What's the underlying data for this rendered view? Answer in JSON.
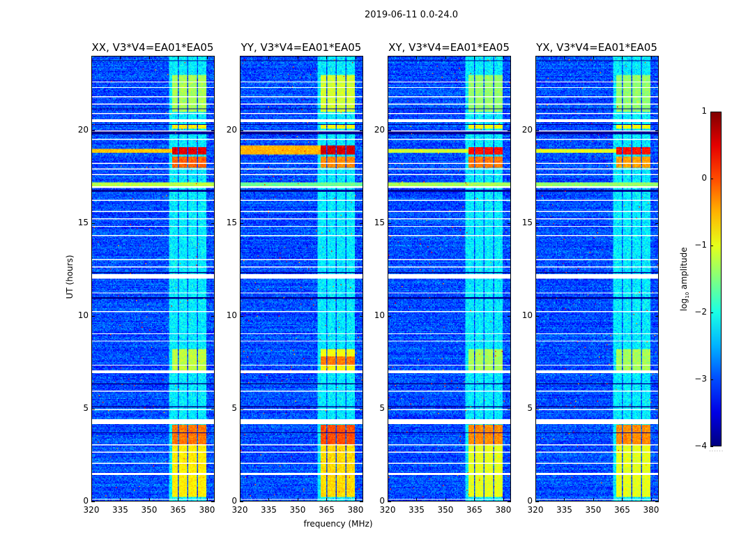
{
  "chart_data": {
    "type": "heatmap",
    "title": "2019-06-11 0.0-24.0",
    "xlabel": "frequency (MHz)",
    "ylabel": "UT (hours)",
    "xlim": [
      320,
      384
    ],
    "ylim": [
      0,
      24
    ],
    "xticks": [
      320,
      335,
      350,
      365,
      380
    ],
    "yticks": [
      0,
      5,
      10,
      15,
      20
    ],
    "colorbar": {
      "label": "log10 amplitude",
      "label_base": "log",
      "label_sub": "10",
      "label_rest": " amplitude",
      "range": [
        -4,
        1
      ],
      "ticks": [
        "1",
        "0",
        "−1",
        "−2",
        "−3",
        "−4"
      ],
      "tick_values": [
        1,
        0,
        -1,
        -2,
        -3,
        -4
      ],
      "colormap": "jet"
    },
    "background_level": -3.0,
    "rfi_channels": [
      [
        360.5,
        364.8
      ],
      [
        365.6,
        369.8
      ],
      [
        370.6,
        374.8
      ],
      [
        375.6,
        380.0
      ]
    ],
    "rfi_channel_level": -2.2,
    "flagged_hours": [
      [
        0.05,
        0.12
      ],
      [
        1.42,
        1.5
      ],
      [
        1.98,
        2.04
      ],
      [
        2.58,
        2.63
      ],
      [
        2.98,
        3.03
      ],
      [
        4.15,
        4.4
      ],
      [
        4.88,
        4.93
      ],
      [
        5.88,
        5.93
      ],
      [
        6.88,
        7.06
      ],
      [
        7.28,
        7.33
      ],
      [
        8.58,
        8.63
      ],
      [
        8.98,
        9.03
      ],
      [
        9.98,
        10.02
      ],
      [
        10.2,
        10.25
      ],
      [
        11.18,
        11.23
      ],
      [
        12.02,
        12.25
      ],
      [
        12.58,
        12.63
      ],
      [
        12.98,
        13.03
      ],
      [
        14.28,
        14.33
      ],
      [
        14.78,
        14.83
      ],
      [
        15.18,
        15.23
      ],
      [
        15.58,
        15.63
      ],
      [
        16.18,
        16.23
      ],
      [
        16.88,
        17.0
      ],
      [
        17.58,
        17.63
      ],
      [
        17.88,
        17.93
      ],
      [
        18.18,
        18.23
      ],
      [
        19.48,
        19.53
      ],
      [
        19.95,
        20.0
      ],
      [
        20.45,
        20.6
      ],
      [
        20.88,
        20.93
      ],
      [
        21.38,
        21.43
      ],
      [
        21.78,
        21.83
      ],
      [
        22.28,
        22.33
      ],
      [
        22.58,
        22.63
      ]
    ],
    "dark_hours": [
      [
        3.65,
        3.72
      ],
      [
        5.05,
        5.1
      ],
      [
        6.3,
        6.35
      ],
      [
        10.92,
        10.98
      ],
      [
        12.3,
        12.36
      ],
      [
        16.7,
        16.78
      ],
      [
        19.8,
        19.93
      ],
      [
        20.3,
        20.36
      ],
      [
        21.15,
        21.2
      ],
      [
        23.75,
        23.8
      ]
    ],
    "panels": [
      {
        "title": "XX, V3*V4=EA01*EA05",
        "events": [
          {
            "hours": [
              0.2,
              4.1
            ],
            "freq": [
              362,
              380
            ],
            "level": -0.8
          },
          {
            "hours": [
              3.0,
              4.1
            ],
            "freq": [
              362,
              380
            ],
            "level": -0.2
          },
          {
            "hours": [
              7.0,
              8.2
            ],
            "freq": [
              362,
              380
            ],
            "level": -1.2
          },
          {
            "hours": [
              18.0,
              18.6
            ],
            "freq": [
              362,
              380
            ],
            "level": -0.1
          },
          {
            "hours": [
              18.7,
              19.1
            ],
            "freq": [
              362,
              380
            ],
            "level": 0.5
          },
          {
            "hours": [
              18.8,
              19.0
            ],
            "freq": [
              320,
              362
            ],
            "level": -0.6
          },
          {
            "hours": [
              17.0,
              17.2
            ],
            "freq": [
              320,
              384
            ],
            "level": -1.2
          },
          {
            "hours": [
              20.1,
              20.3
            ],
            "freq": [
              362,
              380
            ],
            "level": -0.8
          },
          {
            "hours": [
              21.0,
              23.0
            ],
            "freq": [
              362,
              380
            ],
            "level": -1.3
          }
        ]
      },
      {
        "title": "YY, V3*V4=EA01*EA05",
        "events": [
          {
            "hours": [
              0.2,
              4.1
            ],
            "freq": [
              362,
              380
            ],
            "level": -0.7
          },
          {
            "hours": [
              3.0,
              4.1
            ],
            "freq": [
              362,
              380
            ],
            "level": 0.0
          },
          {
            "hours": [
              7.0,
              8.2
            ],
            "freq": [
              362,
              380
            ],
            "level": -0.9
          },
          {
            "hours": [
              7.3,
              7.8
            ],
            "freq": [
              362,
              380
            ],
            "level": -0.2
          },
          {
            "hours": [
              18.0,
              18.6
            ],
            "freq": [
              362,
              380
            ],
            "level": -0.3
          },
          {
            "hours": [
              18.7,
              19.2
            ],
            "freq": [
              362,
              380
            ],
            "level": 0.6
          },
          {
            "hours": [
              18.7,
              19.2
            ],
            "freq": [
              320,
              362
            ],
            "level": -0.5
          },
          {
            "hours": [
              17.0,
              17.2
            ],
            "freq": [
              320,
              384
            ],
            "level": -1.6
          },
          {
            "hours": [
              20.1,
              20.3
            ],
            "freq": [
              362,
              380
            ],
            "level": -0.9
          },
          {
            "hours": [
              21.0,
              23.0
            ],
            "freq": [
              362,
              380
            ],
            "level": -1.1
          }
        ]
      },
      {
        "title": "XY, V3*V4=EA01*EA05",
        "events": [
          {
            "hours": [
              0.2,
              4.1
            ],
            "freq": [
              362,
              380
            ],
            "level": -1.0
          },
          {
            "hours": [
              3.0,
              4.1
            ],
            "freq": [
              362,
              380
            ],
            "level": -0.3
          },
          {
            "hours": [
              7.0,
              8.2
            ],
            "freq": [
              362,
              380
            ],
            "level": -1.3
          },
          {
            "hours": [
              18.0,
              18.6
            ],
            "freq": [
              362,
              380
            ],
            "level": -0.2
          },
          {
            "hours": [
              18.7,
              19.1
            ],
            "freq": [
              362,
              380
            ],
            "level": 0.3
          },
          {
            "hours": [
              18.8,
              19.0
            ],
            "freq": [
              320,
              362
            ],
            "level": -1.1
          },
          {
            "hours": [
              17.0,
              17.2
            ],
            "freq": [
              320,
              384
            ],
            "level": -1.3
          },
          {
            "hours": [
              20.1,
              20.3
            ],
            "freq": [
              362,
              380
            ],
            "level": -0.9
          },
          {
            "hours": [
              21.0,
              23.0
            ],
            "freq": [
              362,
              380
            ],
            "level": -1.4
          }
        ]
      },
      {
        "title": "YX, V3*V4=EA01*EA05",
        "events": [
          {
            "hours": [
              0.2,
              4.1
            ],
            "freq": [
              362,
              380
            ],
            "level": -1.0
          },
          {
            "hours": [
              3.0,
              4.1
            ],
            "freq": [
              362,
              380
            ],
            "level": -0.3
          },
          {
            "hours": [
              7.0,
              8.2
            ],
            "freq": [
              362,
              380
            ],
            "level": -1.3
          },
          {
            "hours": [
              18.0,
              18.6
            ],
            "freq": [
              362,
              380
            ],
            "level": -0.4
          },
          {
            "hours": [
              18.7,
              19.1
            ],
            "freq": [
              362,
              380
            ],
            "level": 0.3
          },
          {
            "hours": [
              18.8,
              19.0
            ],
            "freq": [
              320,
              362
            ],
            "level": -1.0
          },
          {
            "hours": [
              17.0,
              17.2
            ],
            "freq": [
              320,
              384
            ],
            "level": -1.4
          },
          {
            "hours": [
              20.1,
              20.3
            ],
            "freq": [
              362,
              380
            ],
            "level": -0.9
          },
          {
            "hours": [
              21.0,
              23.0
            ],
            "freq": [
              362,
              380
            ],
            "level": -1.4
          }
        ]
      }
    ]
  }
}
